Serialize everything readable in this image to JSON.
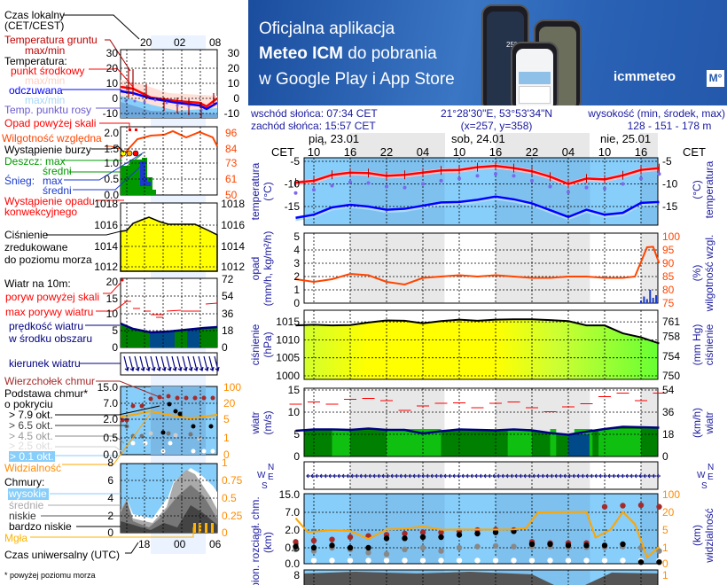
{
  "banner": {
    "line1": "Oficjalna aplikacja",
    "line2_bold": "Meteo ICM",
    "line2_rest": " do pobrania",
    "line3": "w Google Play i App Store",
    "logo": "icmmeteo",
    "logo_badge": "M°",
    "phone_temp": "25°"
  },
  "info": {
    "sunrise": "wschód słońca: 07:34 CET",
    "sunset": "zachód słońca: 15:57 CET",
    "coords": "21°28'30\"E, 53°53'34\"N",
    "grid": "(x=257,  y=358)",
    "elevation_label": "wysokość (min, środek, max)",
    "elevation_value": "128 - 151 - 178 m"
  },
  "time_axis": {
    "tz_label": "CET",
    "days": [
      "pią, 23.01",
      "sob, 24.01",
      "nie, 25.01"
    ],
    "hours": [
      "10",
      "16",
      "22",
      "04",
      "10",
      "16",
      "22",
      "04",
      "10",
      "16"
    ]
  },
  "legend": {
    "local_time": "Czas lokalny",
    "local_time_tz": "(CET/CEST)",
    "top_hours": [
      "20",
      "02",
      "08"
    ],
    "ground_temp": "Temperatura gruntu",
    "ground_temp_mm": "max/min",
    "temperature": "Temperatura:",
    "mid_point": "punkt środkowy",
    "temp_mm": "max/min",
    "apparent": "odczuwana",
    "apparent_mm": "max/min",
    "dew_point": "Temp. punktu rosy",
    "temp_ticks": [
      "30",
      "20",
      "10",
      "0",
      "-10"
    ],
    "precip_over": "Opad powyżej skali",
    "humidity": "Wilgotność względna",
    "storm": "Wystąpienie burzy",
    "rain": "Deszcz: max",
    "rain_avg": "średni",
    "snow": "Śnieg:",
    "snow_max": "max",
    "snow_avg": "średni",
    "convective": "Wystąpienie opadu",
    "convective2": "konwekcyjnego",
    "precip_ticks": [
      "2.0",
      "1.5",
      "1.0",
      "0.5",
      "0.0"
    ],
    "humidity_ticks": [
      "96",
      "84",
      "73",
      "61",
      "50"
    ],
    "pressure1": "Ciśnienie",
    "pressure2": "zredukowane",
    "pressure3": "do poziomu morza",
    "pressure_ticks": [
      "1018",
      "1016",
      "1014",
      "1012"
    ],
    "wind_title": "Wiatr na 10m:",
    "gust_over": "poryw powyżej skali",
    "gust_max": "max porywy wiatru",
    "wind_speed1": "prędkość wiatru",
    "wind_speed2": "w środku obszaru",
    "wind_ticks": [
      "20",
      "15",
      "10",
      "5",
      "0"
    ],
    "wind_ticks_kmh": [
      "72",
      "54",
      "36",
      "18",
      "0"
    ],
    "wind_dir": "kierunek wiatru",
    "cloud_top": "Wierzchołek chmur",
    "cloud_base1": "Podstawa chmur*",
    "cloud_base2": "o pokryciu",
    "okt": [
      "> 7.9 okt.",
      "> 6.5 okt.",
      "> 4.5 okt.",
      "> 2.5 okt.",
      "> 0.1 okt."
    ],
    "visibility": "Widzialność",
    "cloud_ticks": [
      "15.0",
      "7.0",
      "2.0",
      "0.5",
      "0.0"
    ],
    "vis_ticks": [
      "100",
      "20",
      "5",
      "1",
      "0"
    ],
    "clouds": "Chmury:",
    "high": "wysokie",
    "mid": "średnie",
    "low": "niskie",
    "very_low": "bardzo niskie",
    "fog": "Mgła",
    "cover_ticks": [
      "8",
      "6",
      "4",
      "2",
      "0"
    ],
    "fog_ticks": [
      "1",
      "0.75",
      "0.5",
      "0.25",
      "0"
    ],
    "utc": "Czas uniwersalny (UTC)",
    "bottom_hours": [
      "18",
      "00",
      "06"
    ],
    "footnote": "* powyżej poziomu morza"
  },
  "colors": {
    "temp": "#ff0000",
    "apparent": "#0000ff",
    "dew": "#7b68ee",
    "humidity": "#ff4500",
    "pressure": "#ffff00",
    "wind_fill": "#008000",
    "wind_line": "#000080",
    "gust": "#ff0000",
    "visibility": "#ffa500",
    "sky": "#87cefa",
    "night": "#e8e8e8",
    "label": "#1a1aa0"
  },
  "chart_data": [
    {
      "type": "line",
      "panel": "temperature",
      "ylabel_left": [
        "temperatura",
        "(°C)"
      ],
      "ylabel_right": [
        "(°C)",
        "temperatura"
      ],
      "yticks": [
        -5,
        -10,
        -15
      ],
      "x": [
        "23.01 07:00",
        "23.01 10:00",
        "23.01 13:00",
        "23.01 16:00",
        "23.01 19:00",
        "23.01 22:00",
        "24.01 01:00",
        "24.01 04:00",
        "24.01 07:00",
        "24.01 10:00",
        "24.01 13:00",
        "24.01 16:00",
        "24.01 19:00",
        "24.01 22:00",
        "25.01 01:00",
        "25.01 04:00",
        "25.01 07:00",
        "25.01 10:00",
        "25.01 13:00",
        "25.01 16:00",
        "25.01 19:00"
      ],
      "series": [
        {
          "key": "temperature",
          "values": [
            -9.7,
            -9.3,
            -8.0,
            -7.5,
            -7.6,
            -8.2,
            -8.0,
            -7.5,
            -7.0,
            -6.9,
            -6.3,
            -6.0,
            -6.5,
            -7.2,
            -8.4,
            -10.0,
            -8.8,
            -9.0,
            -8.1,
            -6.9,
            -6.5
          ]
        },
        {
          "key": "dew_point",
          "values": [
            -12.0,
            -11.3,
            -10.4,
            -9.6,
            -9.8,
            -10.6,
            -10.8,
            -10.0,
            -9.3,
            -8.8,
            -8.2,
            -7.8,
            -8.2,
            -9.3,
            -10.6,
            -11.8,
            -10.8,
            -11.0,
            -10.0,
            -8.8,
            -7.8
          ]
        },
        {
          "key": "apparent",
          "values": [
            -17.5,
            -16.8,
            -15.2,
            -14.6,
            -15.0,
            -15.7,
            -15.5,
            -14.8,
            -14.1,
            -14.0,
            -13.5,
            -12.8,
            -13.4,
            -14.3,
            -15.8,
            -17.3,
            -15.7,
            -16.8,
            -16.4,
            -14.2,
            -14.0
          ]
        }
      ]
    },
    {
      "type": "line",
      "panel": "precipitation",
      "ylabel_left": [
        "opad",
        "(mm/h, kg/m²/h)"
      ],
      "ylabel_right": [
        "(%)",
        "wilgotność wzgl."
      ],
      "yticks": [
        5,
        4,
        3,
        2,
        1,
        0
      ],
      "yticks_right": [
        100,
        95,
        90,
        85,
        80,
        75
      ],
      "x": [
        "23.01 07:00",
        "23.01 10:00",
        "23.01 13:00",
        "23.01 16:00",
        "23.01 19:00",
        "23.01 22:00",
        "24.01 01:00",
        "24.01 04:00",
        "24.01 07:00",
        "24.01 10:00",
        "24.01 13:00",
        "24.01 16:00",
        "24.01 19:00",
        "24.01 22:00",
        "25.01 01:00",
        "25.01 04:00",
        "25.01 07:00",
        "25.01 10:00",
        "25.01 13:00",
        "25.01 15:00",
        "25.01 17:00",
        "25.01 18:00",
        "25.01 19:00"
      ],
      "humidity": [
        84,
        83,
        84,
        86,
        85.5,
        83,
        82,
        84.5,
        85,
        85.5,
        85,
        85.5,
        85,
        84.5,
        84.5,
        85,
        85,
        84.5,
        84.5,
        85,
        96,
        96.2,
        90
      ],
      "precip_x": [
        "25.01 16:00",
        "25.01 16:30",
        "25.01 17:00",
        "25.01 17:30",
        "25.01 18:00",
        "25.01 18:30"
      ],
      "precip": [
        0.2,
        0.5,
        0.3,
        1.0,
        0.4,
        0.6
      ]
    },
    {
      "type": "area",
      "panel": "pressure",
      "ylabel_left": [
        "ciśnienie",
        "(hPa)"
      ],
      "ylabel_right": [
        "(mm Hg)",
        "ciśnienie"
      ],
      "yticks": [
        1015,
        1010,
        1005,
        1000
      ],
      "yticks_right": [
        761,
        758,
        754,
        750
      ],
      "x": [
        "23.01 07:00",
        "23.01 10:00",
        "23.01 13:00",
        "23.01 16:00",
        "23.01 19:00",
        "23.01 22:00",
        "24.01 01:00",
        "24.01 04:00",
        "24.01 07:00",
        "24.01 10:00",
        "24.01 13:00",
        "24.01 16:00",
        "24.01 19:00",
        "24.01 22:00",
        "25.01 01:00",
        "25.01 04:00",
        "25.01 07:00",
        "25.01 10:00",
        "25.01 13:00",
        "25.01 16:00",
        "25.01 19:00"
      ],
      "values": [
        1014.0,
        1014.2,
        1014.0,
        1014.1,
        1014.8,
        1015.4,
        1015.3,
        1014.6,
        1015.2,
        1015.6,
        1015.3,
        1015.6,
        1015.7,
        1015.7,
        1015.5,
        1015.2,
        1014.0,
        1014.0,
        1011.8,
        1010.7,
        1009.0
      ]
    },
    {
      "type": "area",
      "panel": "wind",
      "ylabel_left": [
        "wiatr",
        "(m/s)"
      ],
      "ylabel_right": [
        "(km/h)",
        "wiatr"
      ],
      "yticks": [
        15,
        10,
        5,
        0
      ],
      "yticks_right": [
        54,
        36,
        18,
        0
      ],
      "x": [
        "23.01 07:00",
        "23.01 10:00",
        "23.01 13:00",
        "23.01 16:00",
        "23.01 19:00",
        "23.01 22:00",
        "24.01 01:00",
        "24.01 04:00",
        "24.01 07:00",
        "24.01 10:00",
        "24.01 13:00",
        "24.01 16:00",
        "24.01 19:00",
        "24.01 22:00",
        "25.01 01:00",
        "25.01 04:00",
        "25.01 07:00",
        "25.01 10:00",
        "25.01 13:00",
        "25.01 16:00",
        "25.01 19:00"
      ],
      "speed": [
        5.8,
        6.1,
        6.1,
        6.0,
        6.3,
        6.0,
        6.0,
        5.2,
        5.7,
        6.1,
        6.0,
        5.9,
        6.1,
        5.9,
        5.3,
        4.9,
        5.6,
        6.2,
        6.7,
        6.6,
        6.5
      ],
      "gust": [
        11.8,
        12.3,
        11.8,
        12.9,
        13.1,
        12.6,
        10.4,
        11.4,
        12.0,
        12.1,
        11.0,
        12.0,
        12.3,
        11.0,
        10.1,
        11.2,
        11.9,
        13.5,
        14.3,
        12.6,
        14.3
      ]
    },
    {
      "type": "scatter",
      "panel": "wind_direction",
      "compass": [
        "N",
        "W",
        "E",
        "S"
      ],
      "direction": "E"
    },
    {
      "type": "scatter",
      "panel": "clouds",
      "ylabel_left": [
        "pion. rozciągł. chm.",
        "(km)"
      ],
      "ylabel_right": [
        "(km)",
        "widzialność"
      ],
      "yticks": [
        "15.0",
        "7.0",
        "2.0",
        "0.5",
        "0.0"
      ],
      "yticks_right": [
        "100",
        "20",
        "5",
        "1",
        "0"
      ],
      "x": [
        "23.01 07:00",
        "23.01 10:00",
        "23.01 13:00",
        "23.01 16:00",
        "23.01 19:00",
        "23.01 22:00",
        "24.01 01:00",
        "24.01 04:00",
        "24.01 07:00",
        "24.01 10:00",
        "24.01 13:00",
        "24.01 16:00",
        "24.01 19:00",
        "24.01 22:00",
        "25.01 01:00",
        "25.01 04:00",
        "25.01 07:00",
        "25.01 10:00",
        "25.01 13:00",
        "25.01 16:00",
        "25.01 19:00"
      ],
      "cloud_top": [
        1.0,
        1.1,
        1.2,
        1.4,
        1.5,
        1.6,
        1.7,
        1.8,
        1.8,
        1.9,
        2.0,
        2.1,
        2.0,
        1.0,
        0.9,
        0.9,
        0.9,
        9.5,
        10.0,
        10.2,
        9.5
      ],
      "okt_7_9": [
        0.6,
        0.5,
        0.7,
        0.5,
        0.5,
        1.3,
        1.3,
        1.4,
        1.4,
        1.6,
        1.7,
        1.8,
        1.9,
        0.8,
        0.8,
        0.7,
        0.7,
        0.7,
        0.8,
        0.05,
        0.05
      ],
      "okt_4_5": [
        0.45,
        0.4,
        0.5,
        0.45,
        0.35,
        0.3,
        0.45,
        0.5,
        0.4,
        0.5,
        0.6,
        0.65,
        0.6,
        0.6,
        0.6,
        0.55,
        0.55,
        0.55,
        0.6,
        0.5,
        0.4
      ],
      "okt_0_1": [
        0.1,
        0.1,
        0.1,
        0.1,
        0.1,
        0.1,
        0.1,
        0.1,
        0.1,
        0.1,
        0.1,
        0.1,
        0.1,
        0.1,
        0.1,
        0.1,
        0.1,
        0.1,
        0.1,
        0.1,
        0.1
      ],
      "visibility_x": [
        "23.01 07:00",
        "23.01 09:00",
        "23.01 13:00",
        "23.01 16:00",
        "23.01 19:00",
        "23.01 22:00",
        "24.01 01:00",
        "24.01 04:00",
        "24.01 07:00",
        "24.01 10:00",
        "24.01 13:00",
        "24.01 16:00",
        "24.01 19:00",
        "24.01 21:00",
        "24.01 23:00",
        "25.01 04:00",
        "25.01 07:00",
        "25.01 08:30",
        "25.01 11:00",
        "25.01 13:00",
        "25.01 15:00",
        "25.01 17:00",
        "25.01 19:00"
      ],
      "visibility": [
        15,
        4.5,
        5,
        4.8,
        3,
        5.5,
        6,
        8,
        5.3,
        5.5,
        5.5,
        5.4,
        5.6,
        6.5,
        20,
        21,
        22,
        3.3,
        5.5,
        22,
        10,
        0.4,
        1.2
      ]
    }
  ]
}
